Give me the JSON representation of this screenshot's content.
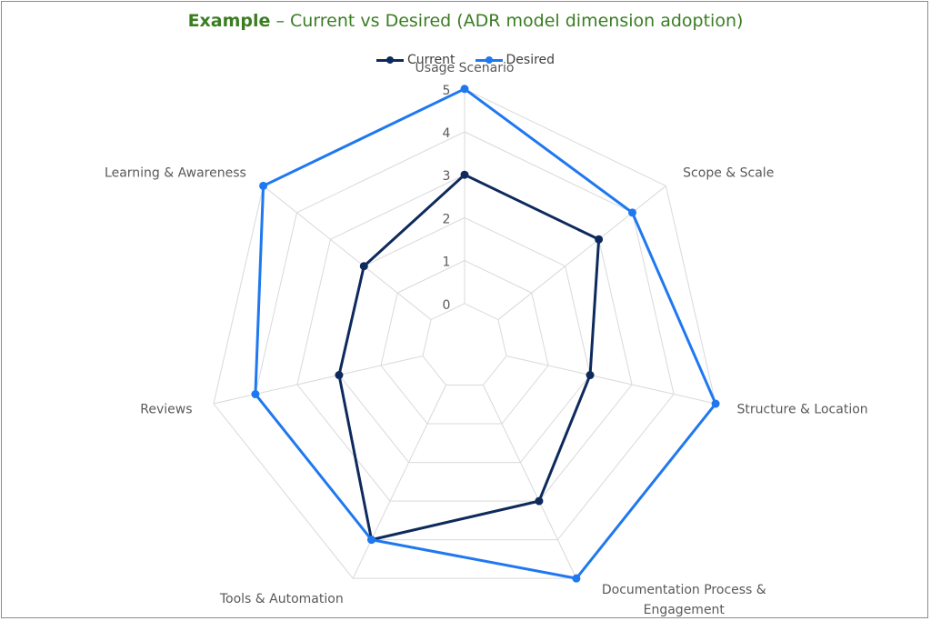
{
  "chart_data": {
    "type": "radar",
    "title_strong": "Example",
    "title_rest": " – Current vs Desired (ADR model dimension adoption)",
    "categories": [
      "Usage Scenario",
      "Scope & Scale",
      "Structure & Location",
      "Documentation Process & Engagement",
      "Tools & Automation",
      "Reviews",
      "Learning & Awareness"
    ],
    "category_lines": [
      [
        "Usage Scenario"
      ],
      [
        "Scope & Scale"
      ],
      [
        "Structure & Location"
      ],
      [
        "Documentation Process &",
        "Engagement"
      ],
      [
        "Tools & Automation"
      ],
      [
        "Reviews"
      ],
      [
        "Learning & Awareness"
      ]
    ],
    "ticks": [
      "0",
      "1",
      "2",
      "3",
      "4",
      "5"
    ],
    "rmin": -1,
    "rmax": 5,
    "grid": true,
    "legend_position": "top",
    "series": [
      {
        "name": "Current",
        "color": "#0e2a5c",
        "values": [
          3,
          3,
          2,
          3,
          4,
          2,
          2
        ]
      },
      {
        "name": "Desired",
        "color": "#1f78f0",
        "values": [
          5,
          4,
          5,
          5,
          4,
          4,
          5
        ]
      }
    ]
  }
}
